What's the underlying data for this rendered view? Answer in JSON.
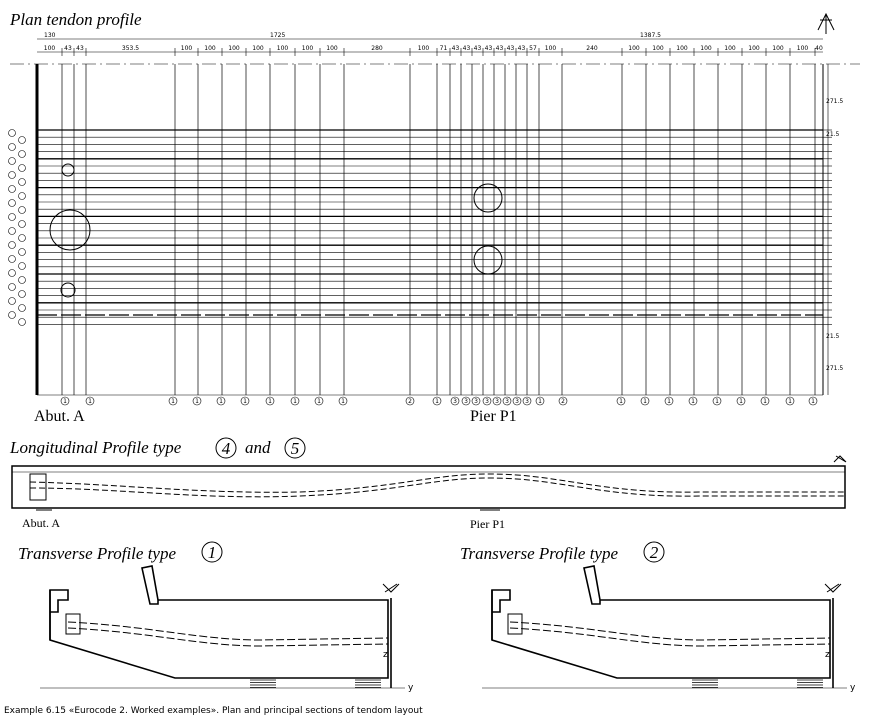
{
  "header": {
    "title": "Plan tendon profile"
  },
  "plan": {
    "overall_dims": [
      "130",
      "1725",
      "1387.5"
    ],
    "segment_dims": [
      "100",
      "43",
      "43",
      "353.5",
      "100",
      "100",
      "100",
      "100",
      "100",
      "100",
      "100",
      "280",
      "100",
      "71",
      "43",
      "43",
      "43",
      "43",
      "43",
      "43",
      "43",
      "57",
      "100",
      "240",
      "100",
      "100",
      "100",
      "100",
      "100",
      "100",
      "100",
      "100",
      "40"
    ],
    "side_dims": [
      "271.5",
      "21.5",
      "21.5",
      "271.5"
    ],
    "tendon_labels": [
      "1",
      "1",
      "1",
      "1",
      "1",
      "1",
      "1",
      "1",
      "1",
      "1",
      "2",
      "1",
      "3",
      "3",
      "3",
      "3",
      "3",
      "3",
      "3",
      "3",
      "1",
      "2",
      "1",
      "1",
      "1",
      "1",
      "1",
      "1",
      "1",
      "1",
      "1"
    ],
    "left_label": "Abut. A",
    "right_label": "Pier P1"
  },
  "longitudinal": {
    "title": "Longitudinal Profile type",
    "type_a": "4",
    "joiner": "and",
    "type_b": "5",
    "left_label": "Abut. A",
    "right_label": "Pier P1"
  },
  "transverse": [
    {
      "title": "Transverse Profile type",
      "type": "1",
      "axis_z": "z",
      "axis_y": "y"
    },
    {
      "title": "Transverse Profile type",
      "type": "2",
      "axis_z": "z",
      "axis_y": "y"
    }
  ],
  "caption": "Example 6.15 «Eurocode 2. Worked examples». Plan and principal sections of tendom layout"
}
